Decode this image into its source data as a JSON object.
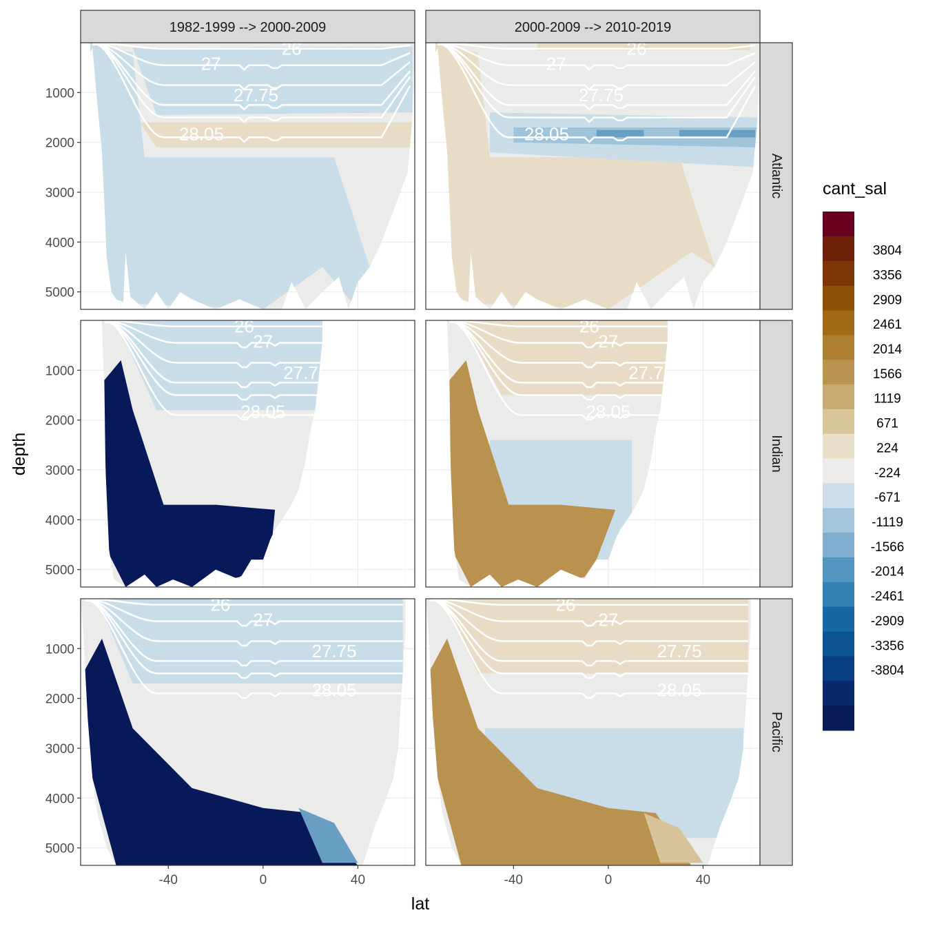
{
  "chart_data": {
    "type": "heatmap",
    "description_kind": "faceted filled-contour section plot",
    "xlabel": "lat",
    "ylabel": "depth",
    "x_ticks": [
      "-40",
      "0",
      "40"
    ],
    "x_tick_values": [
      -40,
      0,
      40
    ],
    "y_ticks": [
      "1000",
      "2000",
      "3000",
      "4000",
      "5000"
    ],
    "y_tick_values": [
      1000,
      2000,
      3000,
      4000,
      5000
    ],
    "xlim": [
      -77,
      64
    ],
    "ylim_reversed": [
      0,
      5350
    ],
    "column_facets": [
      "1982-1999 --> 2000-2009",
      "2000-2009 --> 2010-2019"
    ],
    "row_facets": [
      "Atlantic",
      "Indian",
      "Pacific"
    ],
    "grid": true,
    "legend": {
      "title": "cant_sal",
      "placement": "right",
      "labels": [
        "3804",
        "3356",
        "2909",
        "2461",
        "2014",
        "1566",
        "1119",
        "671",
        "224",
        "-224",
        "-671",
        "-1119",
        "-1566",
        "-2014",
        "-2461",
        "-2909",
        "-3356",
        "-3804"
      ],
      "colors": [
        "#67001f",
        "#6e1f07",
        "#7d3407",
        "#8c5107",
        "#a06916",
        "#ae7e31",
        "#ba9350",
        "#c7ab74",
        "#d9c59a",
        "#e8dfc9",
        "#ebebeb",
        "#cadde9",
        "#a5c5dd",
        "#7fadd0",
        "#5596c0",
        "#3380b3",
        "#1767a2",
        "#0b5391",
        "#083d7f",
        "#082a6b",
        "#081d58"
      ]
    },
    "contour_labels": [
      "26",
      "27",
      "27.75",
      "28.05"
    ],
    "contour_label_levels": [
      26,
      27,
      27.75,
      28.05
    ],
    "region_colors": {
      "neutral": "#ebebe9",
      "light_blue": "#c9dde9",
      "mid_blue": "#9fc4da",
      "dark_blue_band": "#6a9fc4",
      "navy": "#08195a",
      "light_tan": "#e8dcc6",
      "tan": "#d7c29a",
      "mid_tan": "#c7a66a",
      "dark_tan": "#b99250",
      "isopycnal_line": "#ffffff"
    },
    "panels": [
      {
        "row": "Atlantic",
        "col": "1982-1999 --> 2000-2009",
        "dominant": "light_blue deep, neutral north, tan band near 1800-2000 m",
        "lat_range": [
          -73,
          64
        ]
      },
      {
        "row": "Atlantic",
        "col": "2000-2009 --> 2010-2019",
        "dominant": "light_tan deep, blue band near 1800-2000 m",
        "lat_range": [
          -73,
          64
        ]
      },
      {
        "row": "Indian",
        "col": "1982-1999 --> 2000-2009",
        "dominant": "navy deep south, blue upper layers",
        "lat_range": [
          -68,
          25
        ]
      },
      {
        "row": "Indian",
        "col": "2000-2009 --> 2010-2019",
        "dominant": "dark_tan deep south, light_blue 2500-4800 m",
        "lat_range": [
          -68,
          25
        ]
      },
      {
        "row": "Pacific",
        "col": "1982-1999 --> 2000-2009",
        "dominant": "navy bottom water, blue thermocline",
        "lat_range": [
          -77,
          60
        ]
      },
      {
        "row": "Pacific",
        "col": "2000-2009 --> 2010-2019",
        "dominant": "dark_tan bottom water, light_blue 2600-4800 m",
        "lat_range": [
          -77,
          60
        ]
      }
    ]
  }
}
